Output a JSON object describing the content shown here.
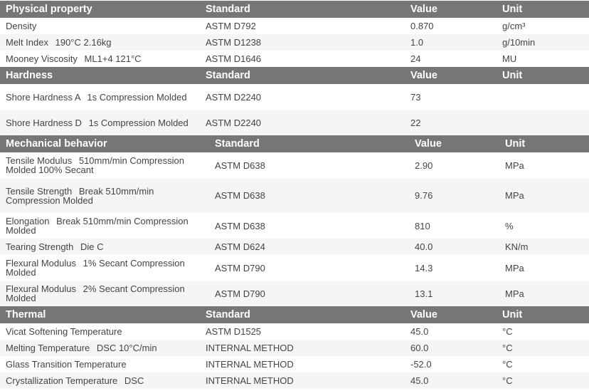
{
  "sections": [
    {
      "title": "Physical property",
      "headers": [
        "Standard",
        "Value",
        "Unit"
      ],
      "rows": [
        {
          "property": "Density",
          "condition": "",
          "standard": "ASTM D792",
          "value": "0.870",
          "unit": "g/cm³"
        },
        {
          "property": "Melt Index",
          "condition": "190°C 2.16kg",
          "standard": "ASTM D1238",
          "value": "1.0",
          "unit": "g/10min"
        },
        {
          "property": "Mooney Viscosity",
          "condition": "ML1+4 121°C",
          "standard": "ASTM D1646",
          "value": "24",
          "unit": "MU"
        }
      ]
    },
    {
      "title": "Hardness",
      "headers": [
        "Standard",
        "Value",
        "Unit"
      ],
      "rows": [
        {
          "property": "Shore Hardness A",
          "condition": "1s Compression Molded",
          "standard": "ASTM D2240",
          "value": "73",
          "unit": ""
        },
        {
          "property": "Shore Hardness D",
          "condition": "1s Compression Molded",
          "standard": "ASTM D2240",
          "value": "22",
          "unit": ""
        }
      ]
    },
    {
      "title": "Mechanical behavior",
      "headers": [
        "Standard",
        "Value",
        "Unit"
      ],
      "rows": [
        {
          "property": "Tensile Modulus",
          "condition": "510mm/min Compression Molded 100% Secant",
          "standard": "ASTM D638",
          "value": "2.90",
          "unit": "MPa"
        },
        {
          "property": "Tensile Strength",
          "condition": "Break 510mm/min Compression Molded",
          "standard": "ASTM D638",
          "value": "9.76",
          "unit": "MPa"
        },
        {
          "property": "Elongation",
          "condition": "Break 510mm/min Compression Molded",
          "standard": "ASTM D638",
          "value": "810",
          "unit": "%"
        },
        {
          "property": "Tearing Strength",
          "condition": "Die C",
          "standard": "ASTM D624",
          "value": "40.0",
          "unit": "KN/m"
        },
        {
          "property": "Flexural Modulus",
          "condition": "1% Secant Compression Molded",
          "standard": "ASTM D790",
          "value": "14.3",
          "unit": "MPa"
        },
        {
          "property": "Flexural Modulus",
          "condition": "2% Secant Compression Molded",
          "standard": "ASTM D790",
          "value": "13.1",
          "unit": "MPa"
        }
      ]
    },
    {
      "title": "Thermal",
      "headers": [
        "Standard",
        "Value",
        "Unit"
      ],
      "rows": [
        {
          "property": "Vicat Softening Temperature",
          "condition": "",
          "standard": "ASTM D1525",
          "value": "45.0",
          "unit": "°C"
        },
        {
          "property": "Melting Temperature",
          "condition": "DSC 10°C/min",
          "standard": "INTERNAL METHOD",
          "value": "60.0",
          "unit": "°C"
        },
        {
          "property": "Glass Transition Temperature",
          "condition": "",
          "standard": "INTERNAL METHOD",
          "value": "-52.0",
          "unit": "°C"
        },
        {
          "property": "Crystallization Temperature",
          "condition": "DSC",
          "standard": "INTERNAL METHOD",
          "value": "45.0",
          "unit": "°C"
        }
      ]
    }
  ]
}
